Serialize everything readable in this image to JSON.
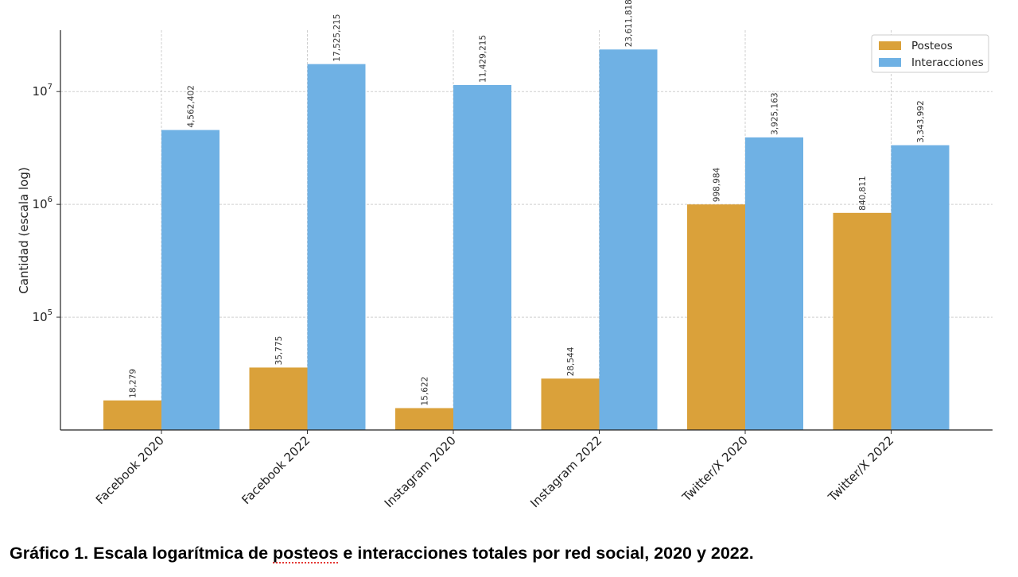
{
  "chart_data": {
    "type": "bar",
    "yscale": "log",
    "ylabel": "Cantidad (escala log)",
    "ylim": [
      10000,
      35000000
    ],
    "categories": [
      "Facebook 2020",
      "Facebook 2022",
      "Instagram 2020",
      "Instagram 2022",
      "Twitter/X 2020",
      "Twitter/X 2022"
    ],
    "yticks": [
      {
        "value": 100000,
        "base": "10",
        "exp": "5"
      },
      {
        "value": 1000000,
        "base": "10",
        "exp": "6"
      },
      {
        "value": 10000000,
        "base": "10",
        "exp": "7"
      }
    ],
    "grid": true,
    "legend_position": "top-right",
    "series": [
      {
        "name": "Posteos",
        "color": "#daa13a",
        "values": [
          18279,
          35775,
          15622,
          28544,
          998984,
          840811
        ],
        "labels": [
          "18,279",
          "35,775",
          "15,622",
          "28,544",
          "998,984",
          "840,811"
        ]
      },
      {
        "name": "Interacciones",
        "color": "#6fb1e4",
        "values": [
          4562402,
          17525215,
          11429215,
          23611818,
          3925163,
          3343992
        ],
        "labels": [
          "4,562,402",
          "17,525,215",
          "11,429,215",
          "23,611,818",
          "3,925,163",
          "3,343,992"
        ]
      }
    ]
  },
  "caption": {
    "before": "Gráfico 1. Escala logarítmica de ",
    "flagged": "posteos",
    "after": " e interacciones totales por red social, 2020 y 2022."
  }
}
